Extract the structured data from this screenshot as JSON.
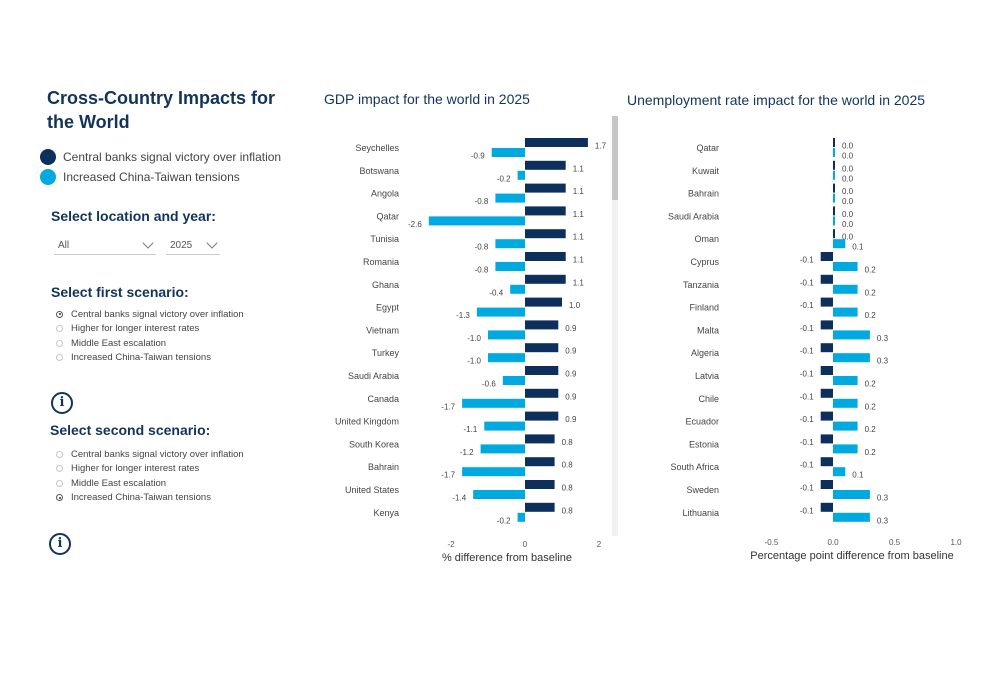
{
  "page": {
    "title": "Cross-Country Impacts for the World",
    "legend": [
      {
        "label": "Central banks signal victory over inflation",
        "color": "#0c2f5c"
      },
      {
        "label": "Increased China-Taiwan tensions",
        "color": "#00a9e0"
      }
    ]
  },
  "filters": {
    "heading": "Select location and year:",
    "location": {
      "selected": "All"
    },
    "year": {
      "selected": "2025"
    }
  },
  "scenario1": {
    "heading": "Select first scenario:",
    "options": [
      {
        "label": "Central banks signal victory over inflation",
        "checked": true
      },
      {
        "label": "Higher for longer interest rates",
        "checked": false
      },
      {
        "label": "Middle East escalation",
        "checked": false
      },
      {
        "label": "Increased China-Taiwan tensions",
        "checked": false
      }
    ]
  },
  "scenario2": {
    "heading": "Select second scenario:",
    "options": [
      {
        "label": "Central banks signal victory over inflation",
        "checked": false
      },
      {
        "label": "Higher for longer interest rates",
        "checked": false
      },
      {
        "label": "Middle East escalation",
        "checked": false
      },
      {
        "label": "Increased China-Taiwan tensions",
        "checked": true
      }
    ]
  },
  "icons": {
    "info": "info-circle-icon",
    "info_glyph": "i"
  },
  "chart_data": [
    {
      "type": "bar",
      "orientation": "horizontal",
      "title": "GDP impact for the world in 2025",
      "xlabel": "% difference from baseline",
      "ylabel": "",
      "xlim": [
        -3,
        2.2
      ],
      "xticks": [
        -2,
        0,
        2
      ],
      "categories": [
        "Seychelles",
        "Botswana",
        "Angola",
        "Qatar",
        "Tunisia",
        "Romania",
        "Ghana",
        "Egypt",
        "Vietnam",
        "Turkey",
        "Saudi Arabia",
        "Canada",
        "United Kingdom",
        "South Korea",
        "Bahrain",
        "United States",
        "Kenya"
      ],
      "series": [
        {
          "name": "Central banks signal victory over inflation",
          "color": "#0c2f5c",
          "values": [
            1.7,
            1.1,
            1.1,
            1.1,
            1.1,
            1.1,
            1.1,
            1.0,
            0.9,
            0.9,
            0.9,
            0.9,
            0.9,
            0.8,
            0.8,
            0.8,
            0.8
          ]
        },
        {
          "name": "Increased China-Taiwan tensions",
          "color": "#00a9e0",
          "values": [
            -0.9,
            -0.2,
            -0.8,
            -2.6,
            -0.8,
            -0.8,
            -0.4,
            -1.3,
            -1.0,
            -1.0,
            -0.6,
            -1.7,
            -1.1,
            -1.2,
            -1.7,
            -1.4,
            -0.2
          ]
        }
      ]
    },
    {
      "type": "bar",
      "orientation": "horizontal",
      "title": "Unemployment rate impact for the world in 2025",
      "xlabel": "Percentage point difference from baseline",
      "ylabel": "",
      "xlim": [
        -0.5,
        1.0
      ],
      "xticks": [
        -0.5,
        0.0,
        0.5,
        1.0
      ],
      "xtick_labels": [
        "-0.5",
        "0.0",
        "0.5",
        "1.0"
      ],
      "categories": [
        "Qatar",
        "Kuwait",
        "Bahrain",
        "Saudi Arabia",
        "Oman",
        "Cyprus",
        "Tanzania",
        "Finland",
        "Malta",
        "Algeria",
        "Latvia",
        "Chile",
        "Ecuador",
        "Estonia",
        "South Africa",
        "Sweden",
        "Lithuania"
      ],
      "series": [
        {
          "name": "Central banks signal victory over inflation",
          "color": "#0c2f5c",
          "values": [
            0.0,
            0.0,
            0.0,
            0.0,
            0.0,
            -0.1,
            -0.1,
            -0.1,
            -0.1,
            -0.1,
            -0.1,
            -0.1,
            -0.1,
            -0.1,
            -0.1,
            -0.1,
            -0.1
          ]
        },
        {
          "name": "Increased China-Taiwan tensions",
          "color": "#00a9e0",
          "values": [
            0.0,
            0.0,
            0.0,
            0.0,
            0.1,
            0.2,
            0.2,
            0.2,
            0.3,
            0.3,
            0.2,
            0.2,
            0.2,
            0.2,
            0.1,
            0.3,
            0.3
          ]
        }
      ]
    }
  ]
}
